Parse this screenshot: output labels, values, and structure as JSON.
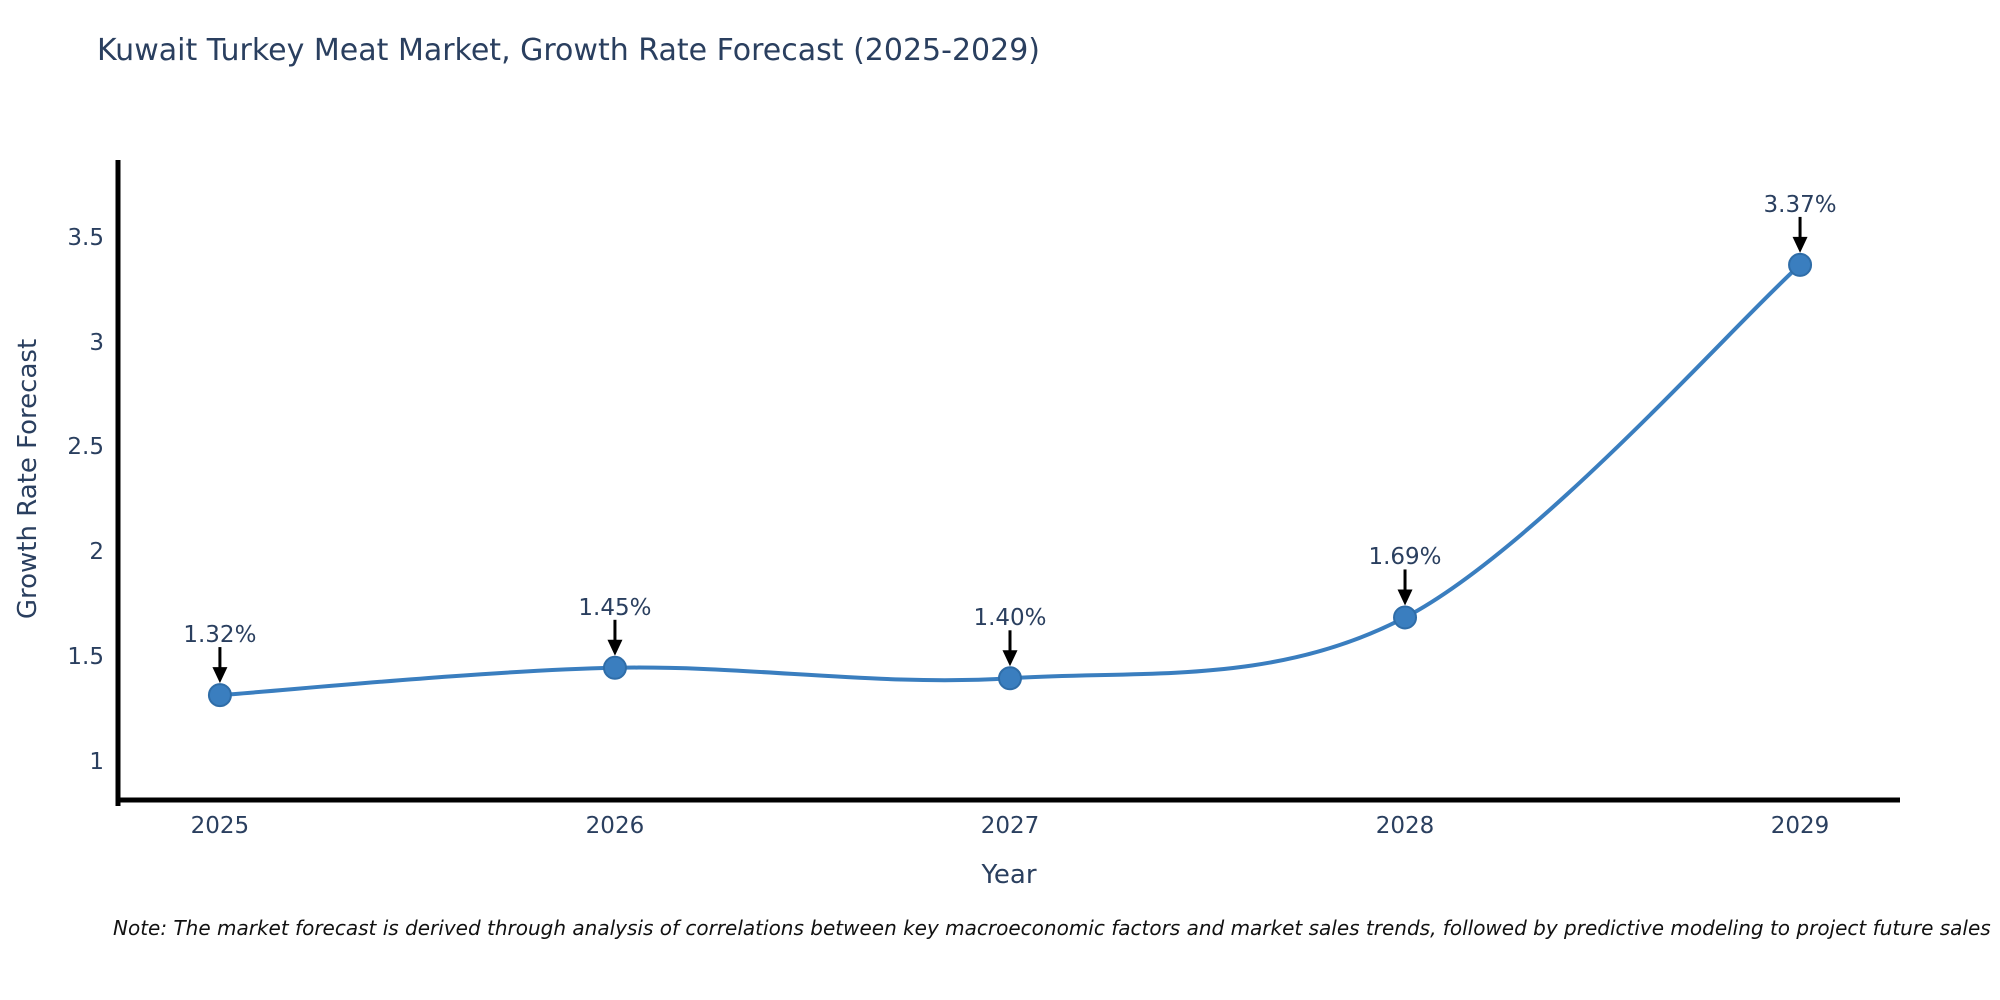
{
  "header": {
    "title": "Kuwait Turkey Meat Market, Growth Rate Forecast (2025-2029)"
  },
  "chart_data": {
    "type": "line",
    "title": "Kuwait Turkey Meat Market, Growth Rate Forecast (2025-2029)",
    "xlabel": "Year",
    "ylabel": "Growth Rate Forecast",
    "x": [
      2025,
      2026,
      2027,
      2028,
      2029
    ],
    "y": [
      1.32,
      1.45,
      1.4,
      1.69,
      3.37
    ],
    "point_labels": [
      "1.32%",
      "1.45%",
      "1.40%",
      "1.69%",
      "3.37%"
    ],
    "x_tick_labels": [
      "2025",
      "2026",
      "2027",
      "2028",
      "2029"
    ],
    "y_ticks": [
      1,
      1.5,
      2,
      2.5,
      3,
      3.5
    ],
    "y_tick_labels": [
      "1",
      "1.5",
      "2",
      "2.5",
      "3",
      "3.5"
    ],
    "xlim": [
      2024.742,
      2029.253
    ],
    "ylim": [
      0.82,
      3.87
    ],
    "grid": false,
    "legend": false,
    "line_shape": "spline",
    "colors": {
      "line": "#3a7ebf",
      "marker": "#3a7ebf",
      "marker_edge": "#2f6da8",
      "arrow": "#000000",
      "axis": "#000000",
      "text": "#2a3f5f"
    }
  },
  "footnote": {
    "text": "Note: The market forecast is derived through analysis of correlations between key macroeconomic factors and market sales trends, followed by predictive modeling to project future sales"
  }
}
